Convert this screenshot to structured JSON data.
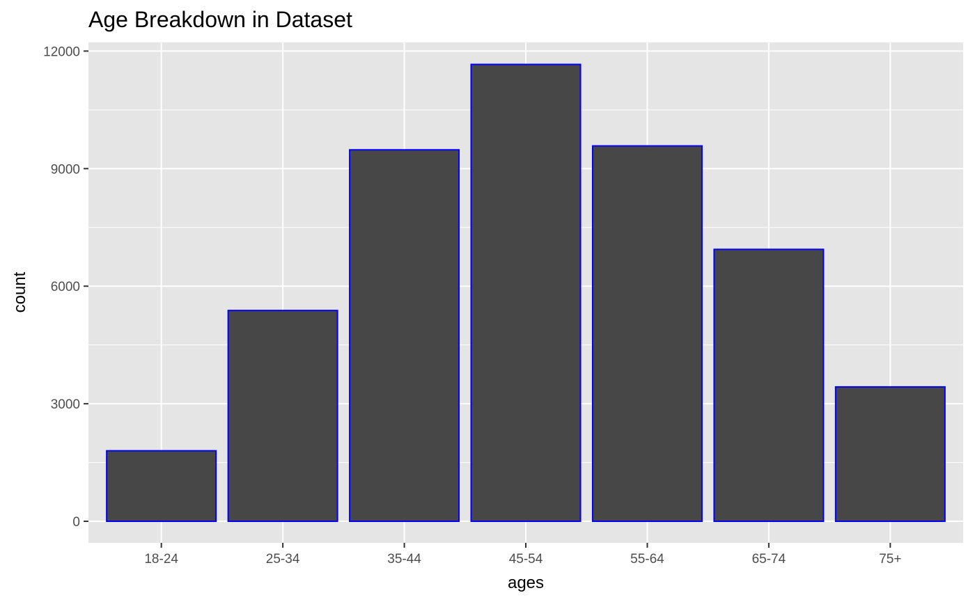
{
  "chart_data": {
    "type": "bar",
    "title": "Age Breakdown in Dataset",
    "xlabel": "ages",
    "ylabel": "count",
    "categories": [
      "18-24",
      "25-34",
      "35-44",
      "45-54",
      "55-64",
      "65-74",
      "75+"
    ],
    "values": [
      1800,
      5380,
      9480,
      11660,
      9580,
      6940,
      3430
    ],
    "ylim": [
      -550,
      12220
    ],
    "yticks": [
      0,
      3000,
      6000,
      9000,
      12000
    ],
    "ytick_labels": [
      "0",
      "3000",
      "6000",
      "9000",
      "12000"
    ],
    "grid": true,
    "legend": "none",
    "colors": {
      "bar_fill": "#474747",
      "bar_outline": "#0000ff",
      "panel_background": "#e5e5e5",
      "grid_line": "#ffffff",
      "tick_mark": "#333333"
    }
  }
}
